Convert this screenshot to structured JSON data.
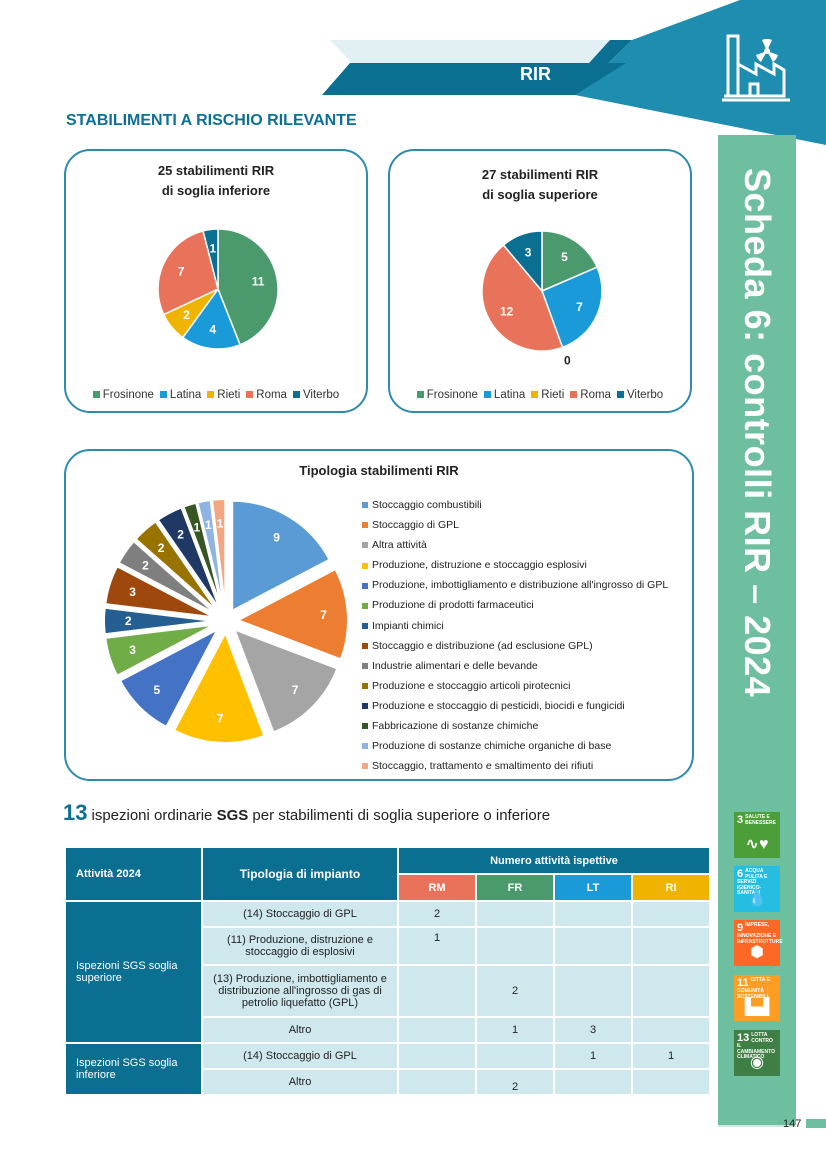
{
  "header": {
    "label": "RIR",
    "colors": {
      "dark": "#0b6f92",
      "light": "#1e8db0"
    }
  },
  "section_title": "STABILIMENTI A RISCHIO RILEVANTE",
  "side_title": "Scheda 6: controlli RIR – 2024",
  "page_number": "147",
  "chart_data": [
    {
      "type": "pie",
      "title": "25 stabilimenti RIR di soglia inferiore",
      "title_lines": [
        "25 stabilimenti RIR",
        "di soglia inferiore"
      ],
      "categories": [
        "Frosinone",
        "Latina",
        "Rieti",
        "Roma",
        "Viterbo"
      ],
      "values": [
        11,
        4,
        2,
        7,
        1
      ],
      "colors": [
        "#4a9a6e",
        "#1a9ad8",
        "#f0b400",
        "#e8735a",
        "#0b6f92"
      ],
      "legend_position": "bottom"
    },
    {
      "type": "pie",
      "title": "27 stabilimenti RIR di soglia superiore",
      "title_lines": [
        "27 stabilimenti RIR",
        "di soglia superiore"
      ],
      "categories": [
        "Frosinone",
        "Latina",
        "Rieti",
        "Roma",
        "Viterbo"
      ],
      "values": [
        5,
        7,
        0,
        12,
        3
      ],
      "colors": [
        "#4a9a6e",
        "#1a9ad8",
        "#f0b400",
        "#e8735a",
        "#0b6f92"
      ],
      "legend_position": "bottom"
    },
    {
      "type": "pie",
      "title": "Tipologia stabilimenti RIR",
      "categories": [
        "Stoccaggio combustibili",
        "Stoccaggio di GPL",
        "Altra attività",
        "Produzione, distruzione e stoccaggio esplosivi",
        "Produzione, imbottigliamento e distribuzione all'ingrosso di GPL",
        "Produzione di prodotti farmaceutici",
        "Impianti chimici",
        "Stoccaggio e distribuzione (ad esclusione GPL)",
        "Industrie alimentari e delle bevande",
        "Produzione e stoccaggio articoli pirotecnici",
        "Produzione e stoccaggio di pesticidi, biocidi e fungicidi",
        "Fabbricazione di sostanze chimiche",
        "Produzione di sostanze chimiche organiche di base",
        "Stoccaggio, trattamento e smaltimento dei rifiuti"
      ],
      "values": [
        9,
        7,
        7,
        7,
        5,
        3,
        2,
        3,
        2,
        2,
        2,
        1,
        1,
        1
      ],
      "colors": [
        "#5b9bd5",
        "#ed7d31",
        "#a5a5a5",
        "#ffc000",
        "#4472c4",
        "#70ad47",
        "#255e91",
        "#9e480e",
        "#7f7f7f",
        "#997300",
        "#203864",
        "#375623",
        "#8fb4e3",
        "#f4a582"
      ],
      "legend_position": "right"
    }
  ],
  "headline": {
    "number": "13",
    "pre": "ispezioni ordinarie ",
    "bold": "SGS",
    "post": " per stabilimenti di soglia superiore o inferiore"
  },
  "table": {
    "col_activity": "Attività 2024",
    "col_type": "Tipologia di impianto",
    "col_group": "Numero attività ispettive",
    "provinces": [
      {
        "code": "RM",
        "color": "#e8735a"
      },
      {
        "code": "FR",
        "color": "#4a9a6e"
      },
      {
        "code": "LT",
        "color": "#1a9ad8"
      },
      {
        "code": "RI",
        "color": "#f0b400"
      }
    ],
    "groups": [
      {
        "label": "Ispezioni SGS soglia superiore",
        "rows": [
          {
            "type": "(14) Stoccaggio di GPL",
            "values": [
              "2",
              "",
              "",
              ""
            ]
          },
          {
            "type": "(11) Produzione, distruzione e stoccaggio di esplosivi",
            "values": [
              "1",
              "",
              "",
              ""
            ]
          },
          {
            "type": "(13) Produzione, imbottigliamento e distribuzione all'ingrosso di gas di petrolio liquefatto (GPL)",
            "values": [
              "",
              "2",
              "",
              ""
            ]
          },
          {
            "type": "Altro",
            "values": [
              "",
              "1",
              "3",
              ""
            ]
          }
        ]
      },
      {
        "label": "Ispezioni SGS soglia inferiore",
        "rows": [
          {
            "type": "(14) Stoccaggio di GPL",
            "values": [
              "",
              "",
              "1",
              "1"
            ]
          },
          {
            "type": "Altro",
            "values": [
              "",
              "2",
              "",
              ""
            ]
          }
        ]
      }
    ]
  },
  "sdgs": [
    {
      "num": "3",
      "label": "SALUTE E BENESSERE",
      "color": "#4c9f38",
      "icon": "heartbeat-icon"
    },
    {
      "num": "6",
      "label": "ACQUA PULITA E SERVIZI IGIENICO-SANITARI",
      "color": "#26bde2",
      "icon": "water-drop-icon"
    },
    {
      "num": "9",
      "label": "IMPRESE, INNOVAZIONE E INFRASTRUTTURE",
      "color": "#fd6925",
      "icon": "cubes-icon"
    },
    {
      "num": "11",
      "label": "CITTÀ E COMUNITÀ SOSTENIBILI",
      "color": "#fd9d24",
      "icon": "city-icon"
    },
    {
      "num": "13",
      "label": "LOTTA CONTRO IL CAMBIAMENTO CLIMATICO",
      "color": "#3f7e44",
      "icon": "eye-icon"
    }
  ]
}
